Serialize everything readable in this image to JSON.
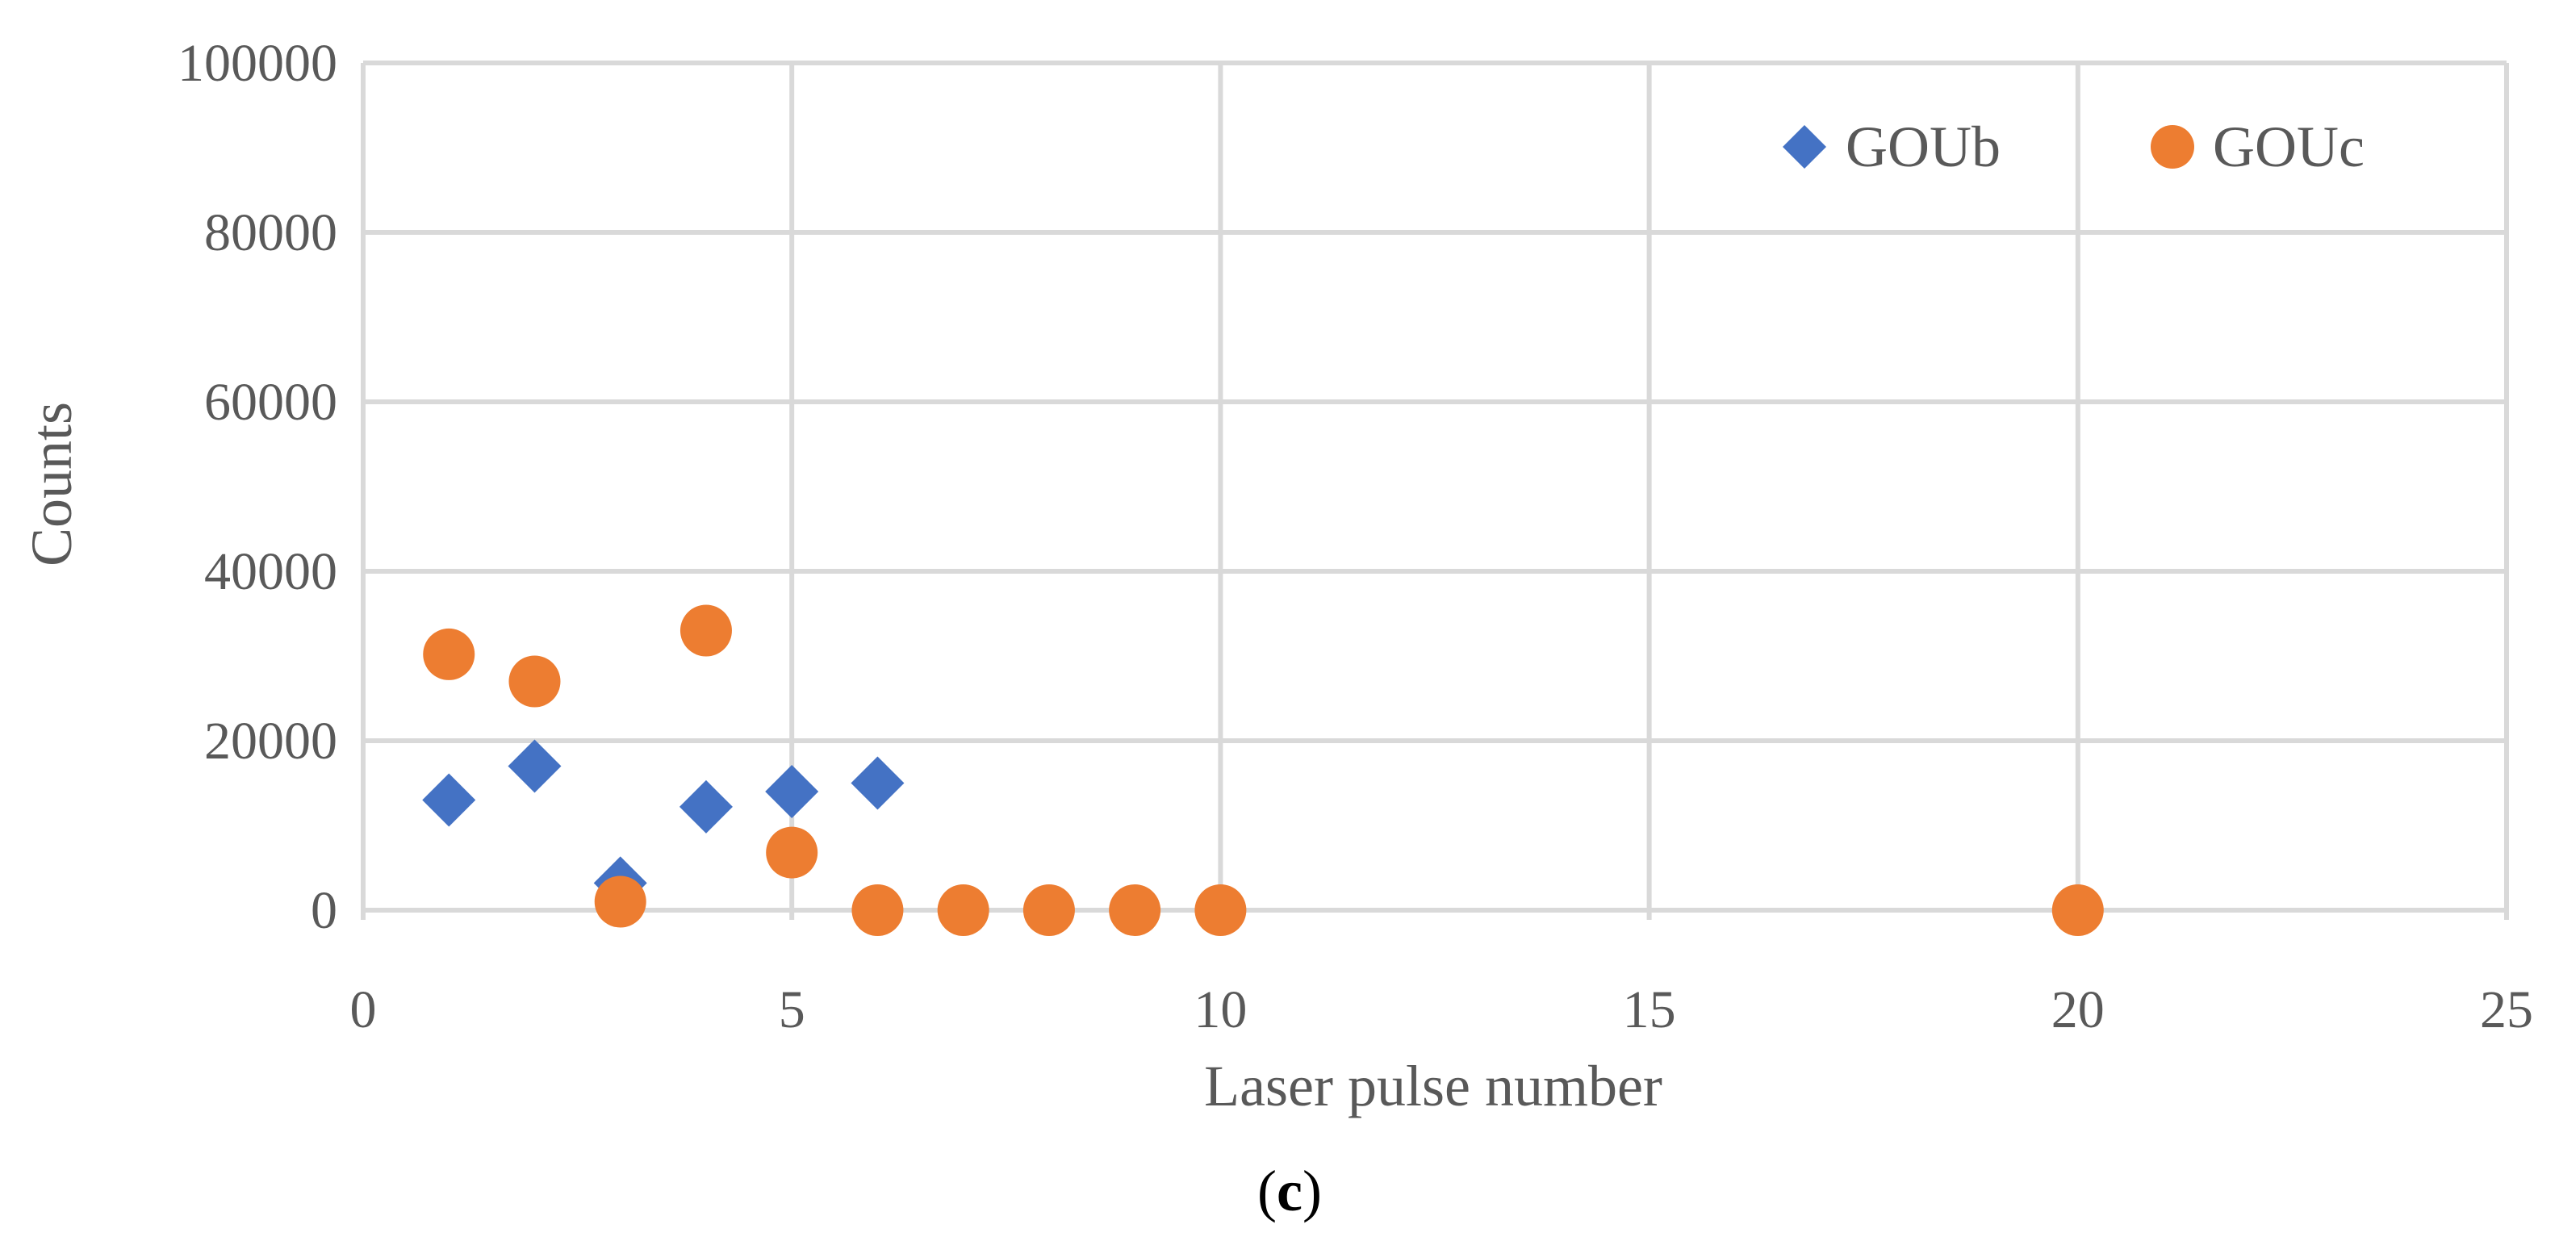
{
  "chart_data": {
    "type": "scatter",
    "title": "",
    "xlabel": "Laser pulse number",
    "ylabel": "Counts",
    "xlim": [
      0,
      25
    ],
    "ylim": [
      0,
      100000
    ],
    "x_ticks": [
      0,
      5,
      10,
      15,
      20,
      25
    ],
    "y_ticks": [
      0,
      20000,
      40000,
      60000,
      80000,
      100000
    ],
    "x_tick_labels": [
      "0",
      "5",
      "10",
      "15",
      "20",
      "25"
    ],
    "y_tick_labels": [
      "0",
      "20000",
      "40000",
      "60000",
      "80000",
      "100000"
    ],
    "grid": true,
    "legend_position": "top-right",
    "series": [
      {
        "name": "GOUb",
        "marker": "diamond",
        "color": "#4472c4",
        "points": [
          {
            "x": 1,
            "y": 13000
          },
          {
            "x": 2,
            "y": 17000
          },
          {
            "x": 3,
            "y": 3200
          },
          {
            "x": 4,
            "y": 12200
          },
          {
            "x": 5,
            "y": 14000
          },
          {
            "x": 6,
            "y": 15000
          }
        ]
      },
      {
        "name": "GOUc",
        "marker": "circle",
        "color": "#ed7d31",
        "points": [
          {
            "x": 1,
            "y": 30200
          },
          {
            "x": 2,
            "y": 27000
          },
          {
            "x": 3,
            "y": 1000
          },
          {
            "x": 4,
            "y": 33000
          },
          {
            "x": 5,
            "y": 6800
          },
          {
            "x": 6,
            "y": 0
          },
          {
            "x": 7,
            "y": 0
          },
          {
            "x": 8,
            "y": 0
          },
          {
            "x": 9,
            "y": 0
          },
          {
            "x": 10,
            "y": 0
          },
          {
            "x": 20,
            "y": 0
          }
        ]
      }
    ]
  },
  "caption": {
    "open": "(",
    "letter": "c",
    "close": ")"
  }
}
